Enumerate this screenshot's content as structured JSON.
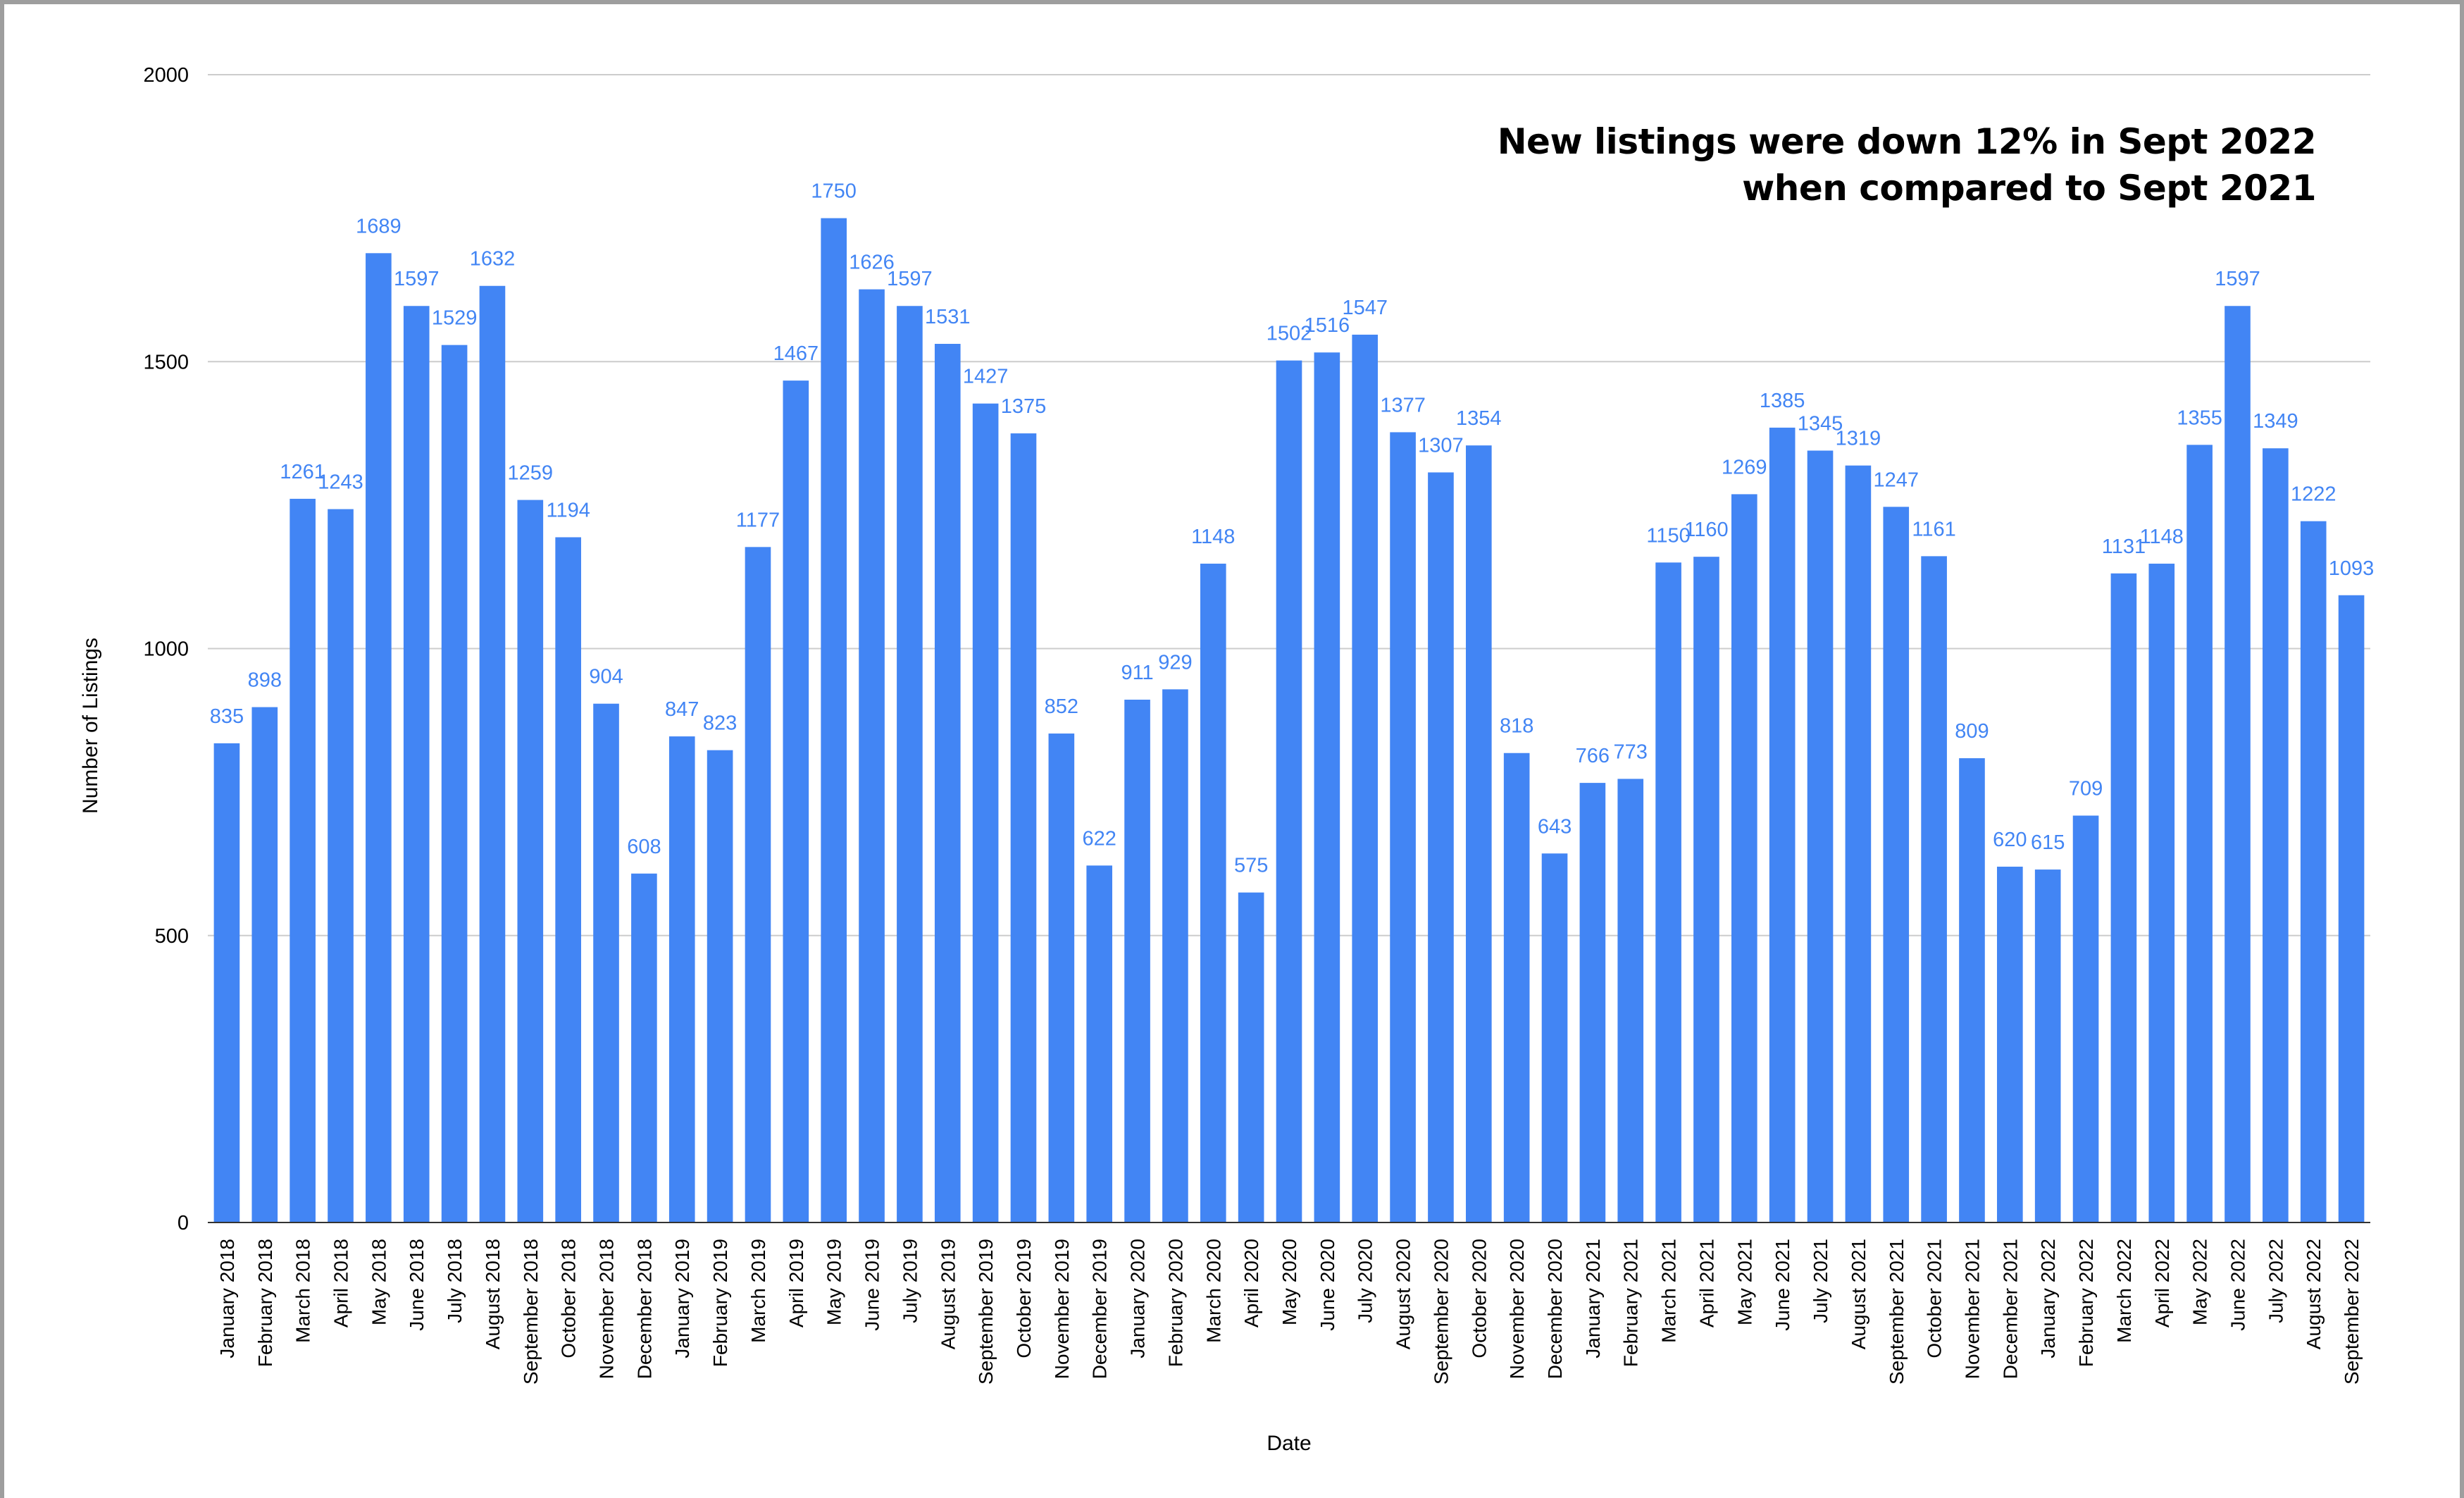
{
  "chart_data": {
    "type": "bar",
    "title": "",
    "annotation": [
      "New listings were down 12% in Sept 2022",
      "when compared to Sept 2021"
    ],
    "xlabel": "Date",
    "ylabel": "Number of Listings",
    "ylim": [
      0,
      2000
    ],
    "yticks": [
      0,
      500,
      1000,
      1500,
      2000
    ],
    "grid": true,
    "legend": "none",
    "bar_color": "#4285f4",
    "label_color": "#4285f4",
    "categories": [
      "January 2018",
      "February 2018",
      "March 2018",
      "April 2018",
      "May 2018",
      "June 2018",
      "July 2018",
      "August 2018",
      "September 2018",
      "October 2018",
      "November 2018",
      "December 2018",
      "January 2019",
      "February 2019",
      "March 2019",
      "April 2019",
      "May 2019",
      "June 2019",
      "July 2019",
      "August 2019",
      "September 2019",
      "October 2019",
      "November 2019",
      "December 2019",
      "January 2020",
      "February 2020",
      "March 2020",
      "April 2020",
      "May 2020",
      "June 2020",
      "July 2020",
      "August 2020",
      "September 2020",
      "October 2020",
      "November 2020",
      "December 2020",
      "January 2021",
      "February 2021",
      "March 2021",
      "April 2021",
      "May 2021",
      "June 2021",
      "July 2021",
      "August 2021",
      "September 2021",
      "October 2021",
      "November 2021",
      "December 2021",
      "January 2022",
      "February 2022",
      "March 2022",
      "April 2022",
      "May 2022",
      "June 2022",
      "July 2022",
      "August 2022",
      "September 2022"
    ],
    "values": [
      835,
      898,
      1261,
      1243,
      1689,
      1597,
      1529,
      1632,
      1259,
      1194,
      904,
      608,
      847,
      823,
      1177,
      1467,
      1750,
      1626,
      1597,
      1531,
      1427,
      1375,
      852,
      622,
      911,
      929,
      1148,
      575,
      1502,
      1516,
      1547,
      1377,
      1307,
      1354,
      818,
      643,
      766,
      773,
      1150,
      1160,
      1269,
      1385,
      1345,
      1319,
      1247,
      1161,
      809,
      620,
      615,
      709,
      1131,
      1148,
      1355,
      1597,
      1349,
      1222,
      1093
    ]
  }
}
